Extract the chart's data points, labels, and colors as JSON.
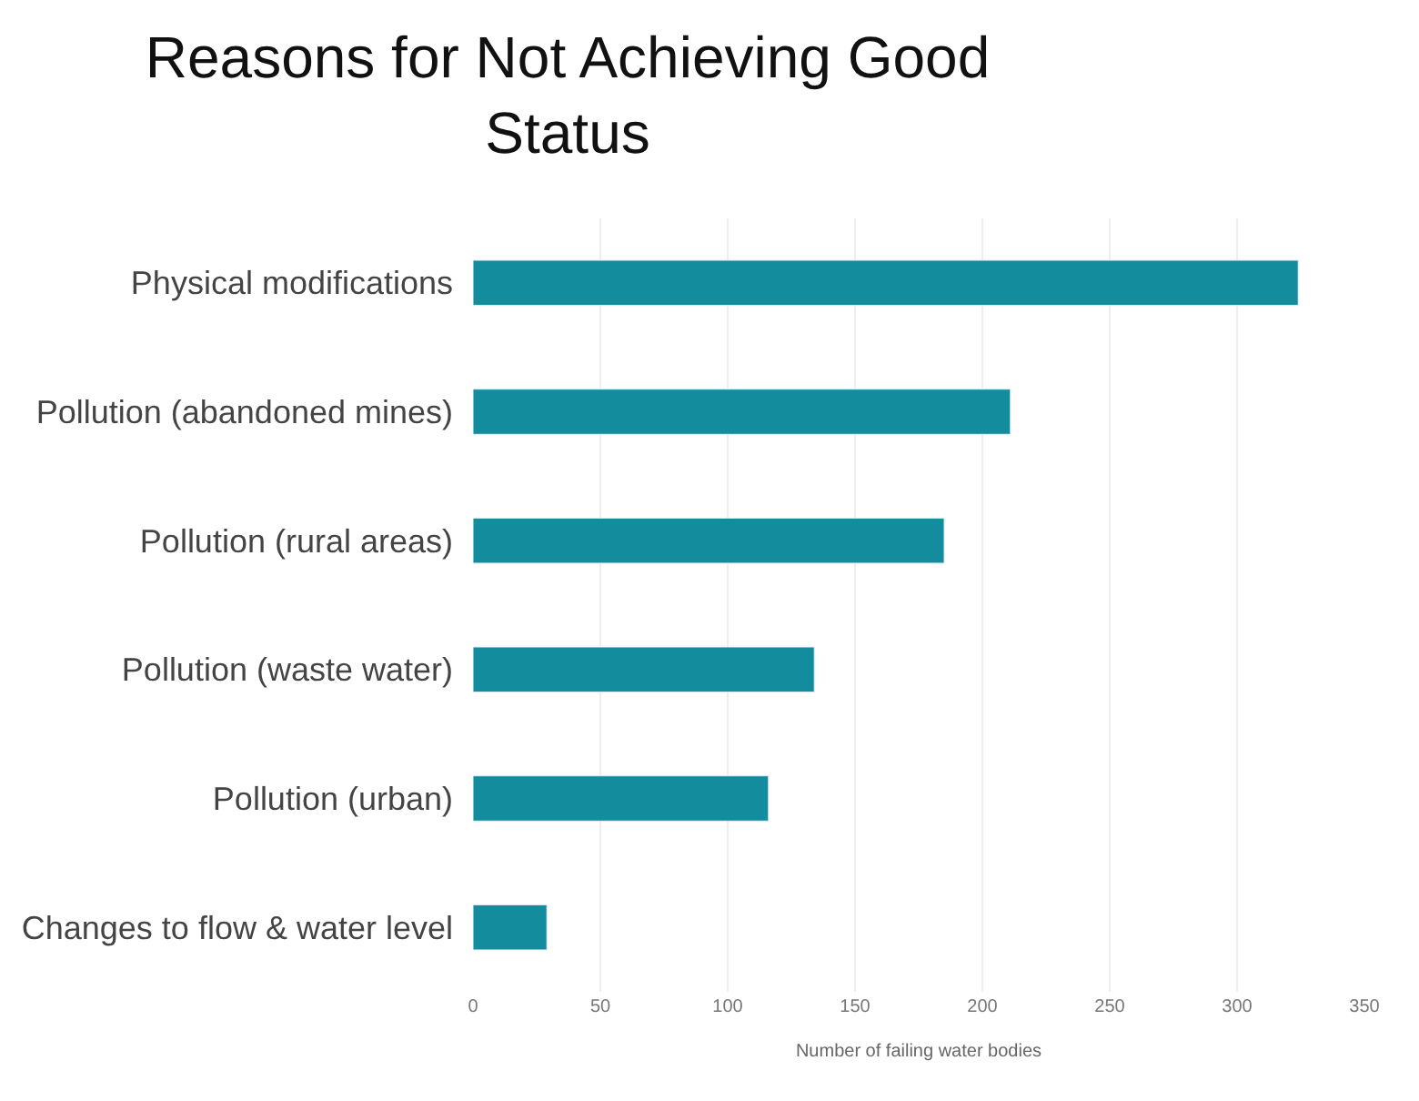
{
  "chart_data": {
    "type": "bar",
    "orientation": "horizontal",
    "title": "Reasons for Not Achieving Good Status",
    "xlabel": "Number of failing water bodies",
    "categories": [
      "Physical modifications",
      "Pollution (abandoned mines)",
      "Pollution (rural areas)",
      "Pollution (waste water)",
      "Pollution (urban)",
      "Changes to flow & water level"
    ],
    "values": [
      324,
      211,
      185,
      134,
      116,
      29
    ],
    "color": "#138c9e",
    "xlim": [
      0,
      350
    ],
    "xticks": [
      0,
      50,
      100,
      150,
      200,
      250,
      300,
      350
    ],
    "grid": "x",
    "legend": false
  }
}
